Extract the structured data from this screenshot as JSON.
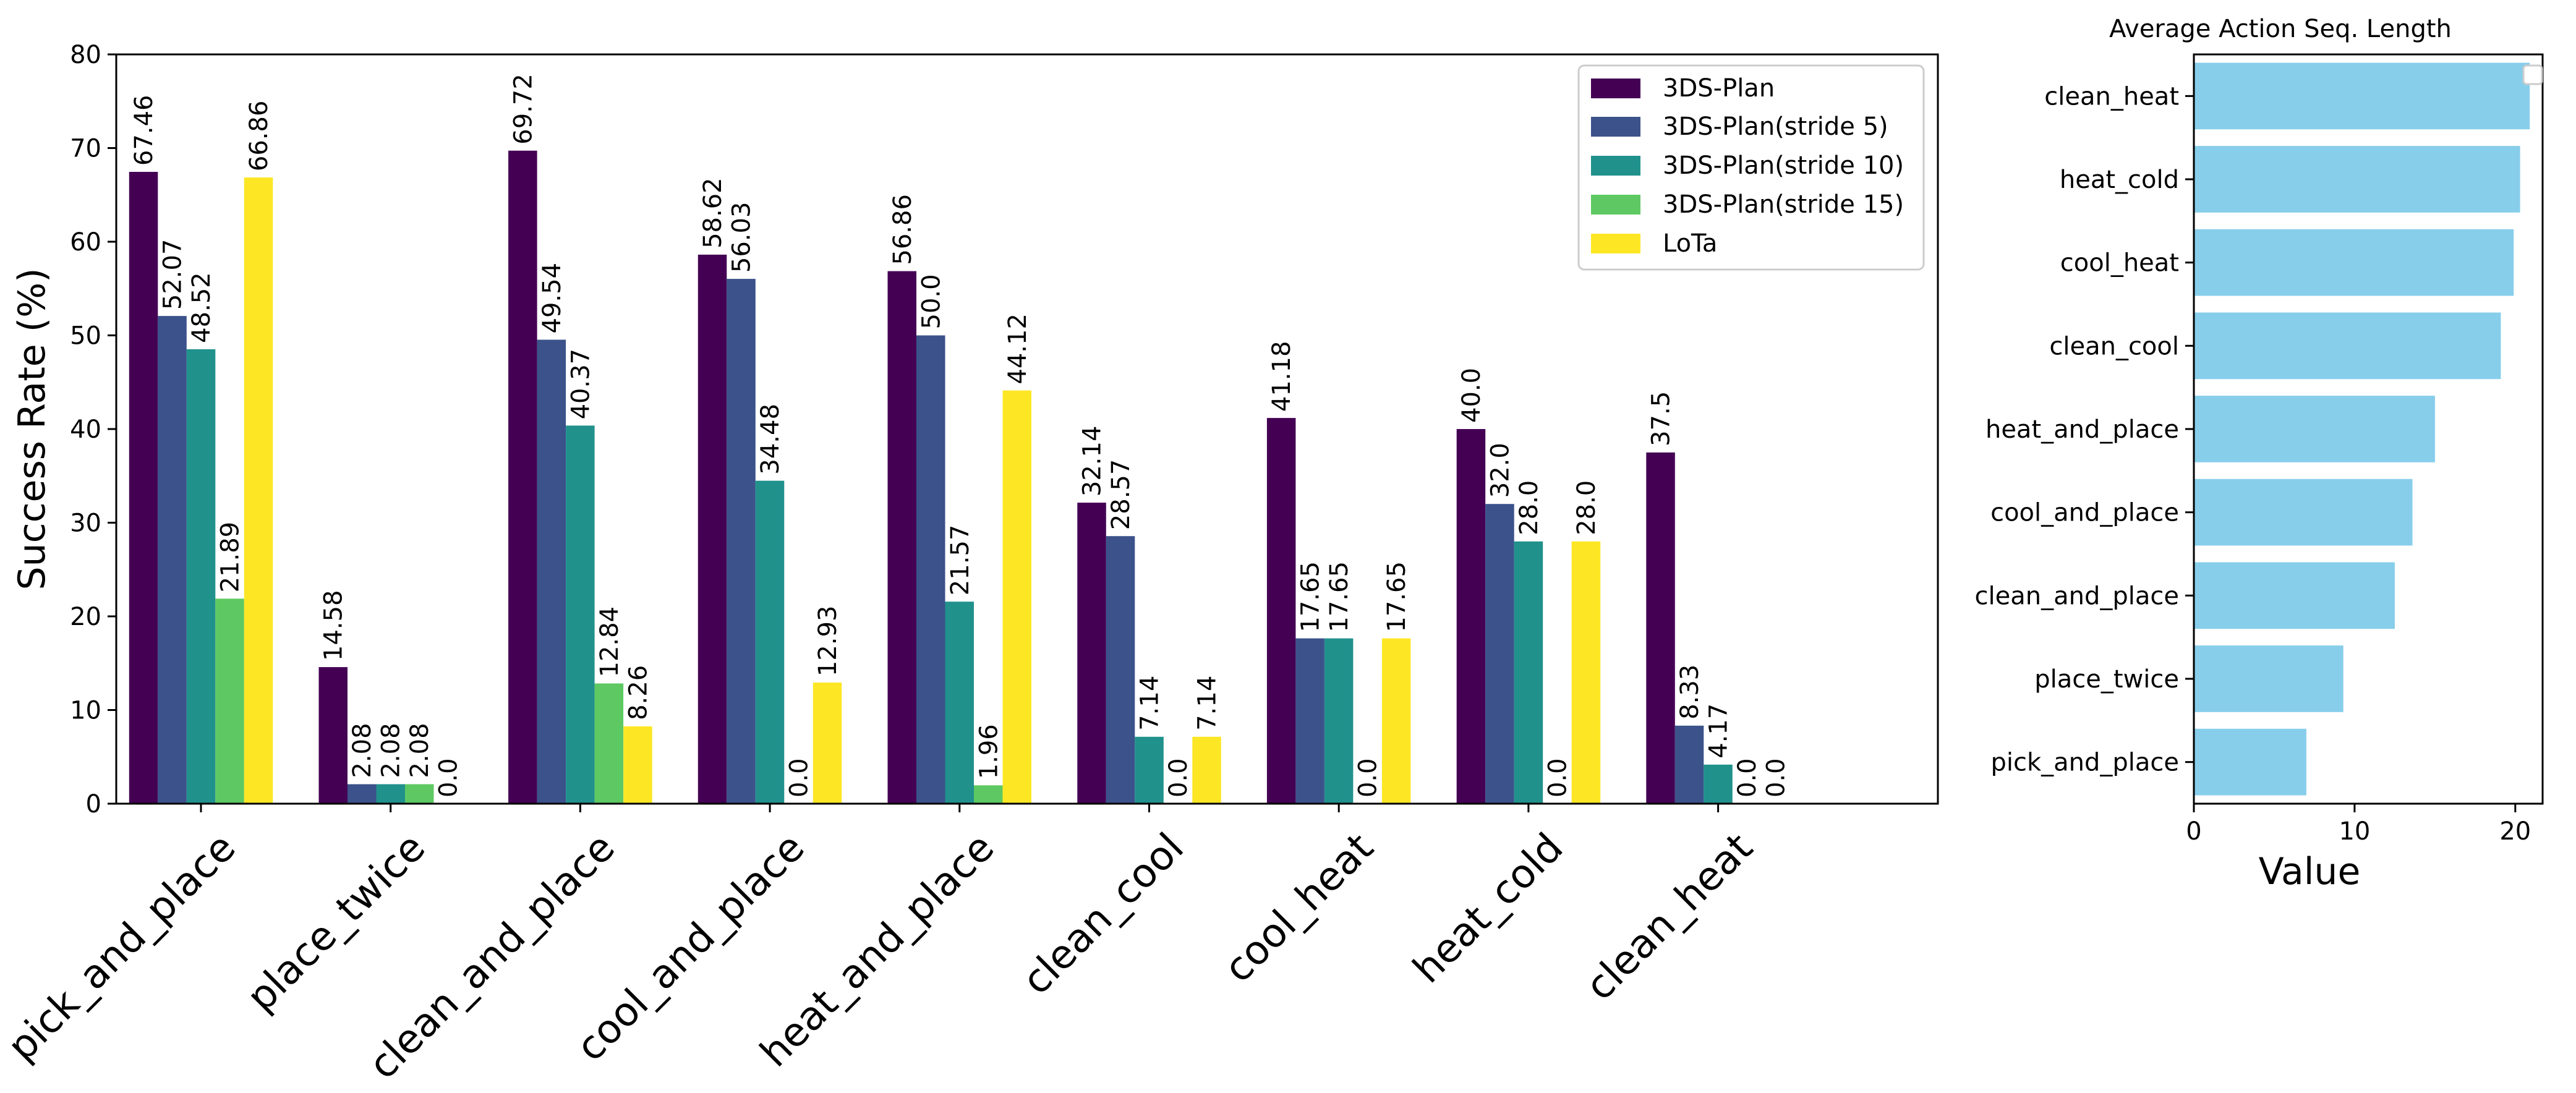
{
  "chart_data": [
    {
      "type": "bar",
      "ylabel": "Success Rate (%)",
      "ylim": [
        0,
        80
      ],
      "yticks": [
        0,
        10,
        20,
        30,
        40,
        50,
        60,
        70,
        80
      ],
      "categories": [
        "pick_and_place",
        "place_twice",
        "clean_and_place",
        "cool_and_place",
        "heat_and_place",
        "clean_cool",
        "cool_heat",
        "heat_cold",
        "clean_heat"
      ],
      "legend_position": "top-right",
      "grid": false,
      "series": [
        {
          "name": "3DS-Plan",
          "color": "#440154",
          "values": [
            67.46,
            14.58,
            69.72,
            58.62,
            56.86,
            32.14,
            41.18,
            40.0,
            37.5
          ],
          "labels": [
            "67.46",
            "14.58",
            "69.72",
            "58.62",
            "56.86",
            "32.14",
            "41.18",
            "40.0",
            "37.5"
          ]
        },
        {
          "name": "3DS-Plan(stride 5)",
          "color": "#3b528b",
          "values": [
            52.07,
            2.08,
            49.54,
            56.03,
            50.0,
            28.57,
            17.65,
            32.0,
            8.33
          ],
          "labels": [
            "52.07",
            "2.08",
            "49.54",
            "56.03",
            "50.0",
            "28.57",
            "17.65",
            "32.0",
            "8.33"
          ]
        },
        {
          "name": "3DS-Plan(stride 10)",
          "color": "#21918c",
          "values": [
            48.52,
            2.08,
            40.37,
            34.48,
            21.57,
            7.14,
            17.65,
            28.0,
            4.17
          ],
          "labels": [
            "48.52",
            "2.08",
            "40.37",
            "34.48",
            "21.57",
            "7.14",
            "17.65",
            "28.0",
            "4.17"
          ]
        },
        {
          "name": "3DS-Plan(stride 15)",
          "color": "#5ec962",
          "values": [
            21.89,
            2.08,
            12.84,
            0.0,
            1.96,
            0.0,
            0.0,
            0.0,
            0.0
          ],
          "labels": [
            "21.89",
            "2.08",
            "12.84",
            "0.0",
            "1.96",
            "0.0",
            "0.0",
            "0.0",
            "0.0"
          ]
        },
        {
          "name": "LoTa",
          "color": "#fde725",
          "values": [
            66.86,
            0.0,
            8.26,
            12.93,
            44.12,
            7.14,
            17.65,
            28.0,
            0.0
          ],
          "labels": [
            "66.86",
            "0.0",
            "8.26",
            "12.93",
            "44.12",
            "7.14",
            "17.65",
            "28.0",
            "0.0"
          ]
        }
      ]
    },
    {
      "type": "bar",
      "orientation": "horizontal",
      "title": "Average Action Seq. Length",
      "xlabel": "Value",
      "xlim": [
        0,
        21.7
      ],
      "xticks": [
        0,
        10,
        20
      ],
      "bar_color": "#87ceeb",
      "categories": [
        "clean_heat",
        "heat_cold",
        "cool_heat",
        "clean_cool",
        "heat_and_place",
        "cool_and_place",
        "clean_and_place",
        "place_twice",
        "pick_and_place"
      ],
      "values": [
        20.9,
        20.3,
        19.9,
        19.1,
        15.0,
        13.6,
        12.5,
        9.3,
        7.0
      ],
      "legend_position": "top-right",
      "grid": false
    }
  ]
}
